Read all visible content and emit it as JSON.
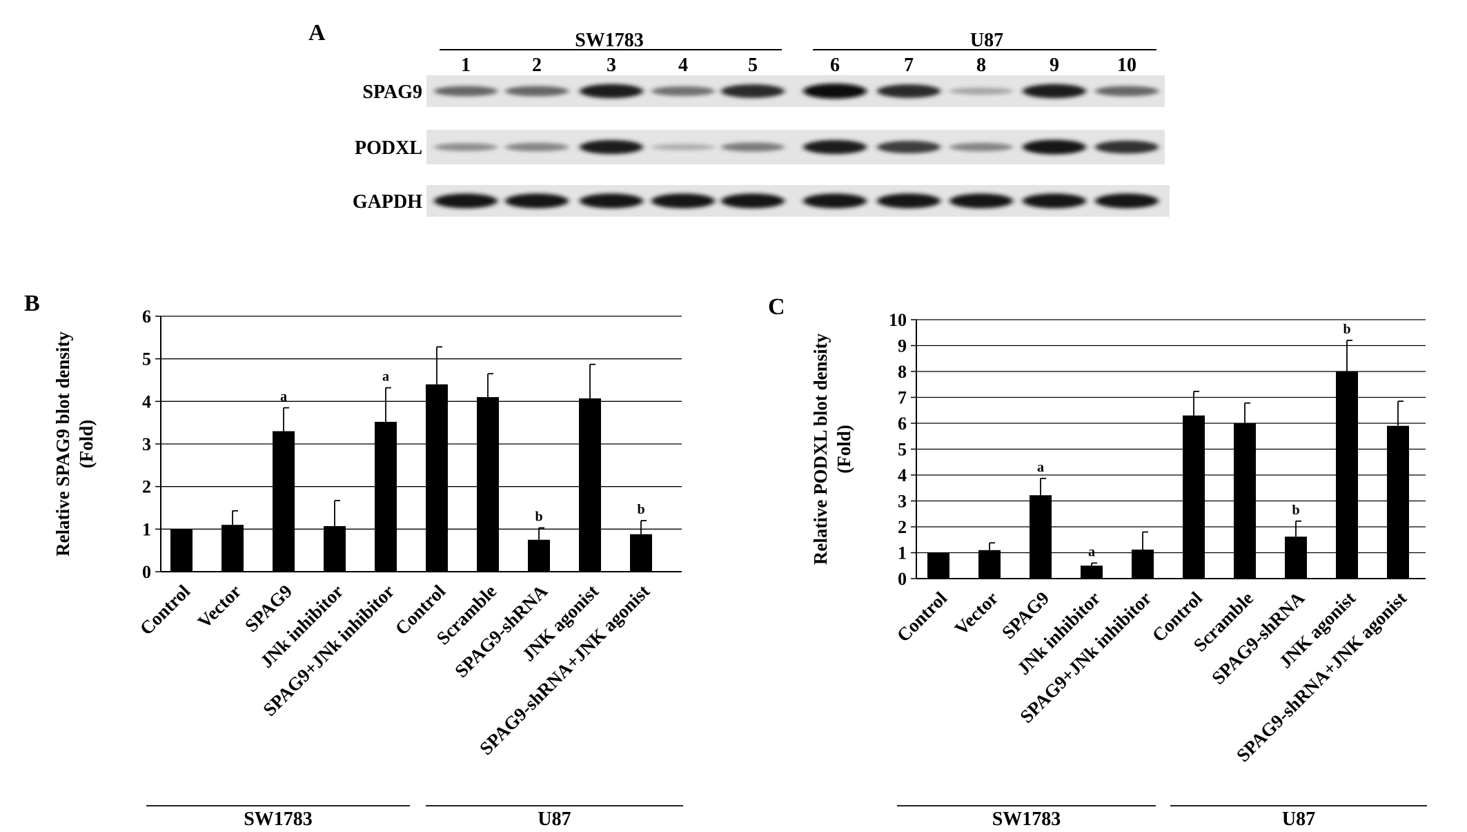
{
  "panel_a": {
    "label": "A",
    "groups": [
      {
        "name": "SW1783",
        "lanes": [
          "1",
          "2",
          "3",
          "4",
          "5"
        ]
      },
      {
        "name": "U87",
        "lanes": [
          "6",
          "7",
          "8",
          "9",
          "10"
        ]
      }
    ],
    "rows": [
      {
        "name": "SPAG9",
        "intensity": [
          0.55,
          0.55,
          0.9,
          0.5,
          0.85,
          1.0,
          0.85,
          0.25,
          0.9,
          0.55
        ]
      },
      {
        "name": "PODXL",
        "intensity": [
          0.35,
          0.4,
          0.9,
          0.2,
          0.45,
          0.9,
          0.75,
          0.4,
          0.95,
          0.8
        ]
      },
      {
        "name": "GAPDH",
        "intensity": [
          0.95,
          0.95,
          0.95,
          0.95,
          0.95,
          0.95,
          0.95,
          0.95,
          0.95,
          0.95
        ]
      }
    ]
  },
  "chart_data": [
    {
      "panel": "B",
      "type": "bar",
      "ylabel": "Relative SPAG9 blot density",
      "ylabel2": "(Fold)",
      "ylim": [
        0,
        6
      ],
      "yticks": [
        "0",
        "1",
        "2",
        "3",
        "4",
        "5",
        "6"
      ],
      "grid": true,
      "categories": [
        "Control",
        "Vector",
        "SPAG9",
        "JNk inhibitor",
        "SPAG9+JNk inhibitor",
        "Control",
        "Scramble",
        "SPAG9-shRNA",
        "JNK agonist",
        "SPAG9-shRNA+JNK agonist"
      ],
      "values": [
        1.0,
        1.1,
        3.3,
        1.07,
        3.52,
        4.4,
        4.1,
        0.75,
        4.07,
        0.88
      ],
      "errors": [
        0,
        0.33,
        0.55,
        0.6,
        0.8,
        0.88,
        0.55,
        0.28,
        0.8,
        0.32
      ],
      "annotations": [
        "",
        "",
        "a",
        "",
        "a",
        "",
        "",
        "b",
        "",
        "b"
      ],
      "groups": [
        {
          "name": "SW1783",
          "from": 0,
          "to": 4
        },
        {
          "name": "U87",
          "from": 5,
          "to": 9
        }
      ]
    },
    {
      "panel": "C",
      "type": "bar",
      "ylabel": "Relative PODXL blot density",
      "ylabel2": "(Fold)",
      "ylim": [
        0,
        10
      ],
      "yticks": [
        "0",
        "1",
        "2",
        "3",
        "4",
        "5",
        "6",
        "7",
        "8",
        "9",
        "10"
      ],
      "grid": true,
      "categories": [
        "Control",
        "Vector",
        "SPAG9",
        "JNk inhibitor",
        "SPAG9+JNk inhibitor",
        "Control",
        "Scramble",
        "SPAG9-shRNA",
        "JNK agonist",
        "SPAG9-shRNA+JNK agonist"
      ],
      "values": [
        1.0,
        1.1,
        3.22,
        0.5,
        1.12,
        6.3,
        6.0,
        1.62,
        8.0,
        5.9
      ],
      "errors": [
        0,
        0.28,
        0.65,
        0.1,
        0.68,
        0.93,
        0.78,
        0.6,
        1.2,
        0.95
      ],
      "annotations": [
        "",
        "",
        "a",
        "a",
        "",
        "",
        "",
        "b",
        "b",
        ""
      ],
      "groups": [
        {
          "name": "SW1783",
          "from": 0,
          "to": 4
        },
        {
          "name": "U87",
          "from": 5,
          "to": 9
        }
      ]
    }
  ]
}
